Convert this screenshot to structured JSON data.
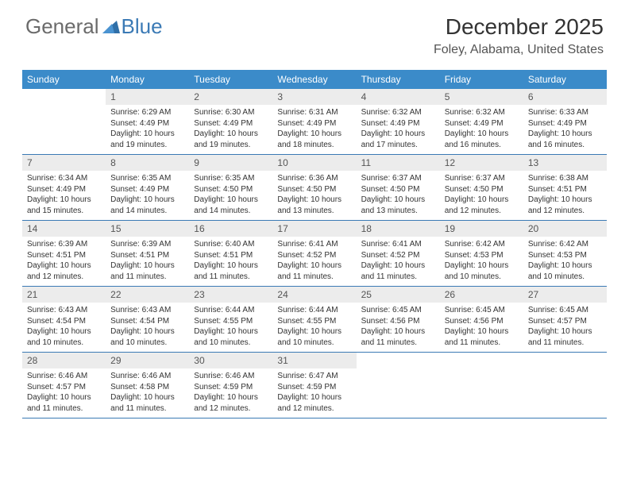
{
  "logo": {
    "text1": "General",
    "text2": "Blue"
  },
  "title": "December 2025",
  "location": "Foley, Alabama, United States",
  "colors": {
    "header_bg": "#3b8bc9",
    "accent": "#3b7ab5",
    "daynum_bg": "#ececec",
    "text": "#333333",
    "logo_gray": "#6b6b6b"
  },
  "day_names": [
    "Sunday",
    "Monday",
    "Tuesday",
    "Wednesday",
    "Thursday",
    "Friday",
    "Saturday"
  ],
  "weeks": [
    [
      {
        "n": "",
        "sr": "",
        "ss": "",
        "dl": ""
      },
      {
        "n": "1",
        "sr": "Sunrise: 6:29 AM",
        "ss": "Sunset: 4:49 PM",
        "dl": "Daylight: 10 hours and 19 minutes."
      },
      {
        "n": "2",
        "sr": "Sunrise: 6:30 AM",
        "ss": "Sunset: 4:49 PM",
        "dl": "Daylight: 10 hours and 19 minutes."
      },
      {
        "n": "3",
        "sr": "Sunrise: 6:31 AM",
        "ss": "Sunset: 4:49 PM",
        "dl": "Daylight: 10 hours and 18 minutes."
      },
      {
        "n": "4",
        "sr": "Sunrise: 6:32 AM",
        "ss": "Sunset: 4:49 PM",
        "dl": "Daylight: 10 hours and 17 minutes."
      },
      {
        "n": "5",
        "sr": "Sunrise: 6:32 AM",
        "ss": "Sunset: 4:49 PM",
        "dl": "Daylight: 10 hours and 16 minutes."
      },
      {
        "n": "6",
        "sr": "Sunrise: 6:33 AM",
        "ss": "Sunset: 4:49 PM",
        "dl": "Daylight: 10 hours and 16 minutes."
      }
    ],
    [
      {
        "n": "7",
        "sr": "Sunrise: 6:34 AM",
        "ss": "Sunset: 4:49 PM",
        "dl": "Daylight: 10 hours and 15 minutes."
      },
      {
        "n": "8",
        "sr": "Sunrise: 6:35 AM",
        "ss": "Sunset: 4:49 PM",
        "dl": "Daylight: 10 hours and 14 minutes."
      },
      {
        "n": "9",
        "sr": "Sunrise: 6:35 AM",
        "ss": "Sunset: 4:50 PM",
        "dl": "Daylight: 10 hours and 14 minutes."
      },
      {
        "n": "10",
        "sr": "Sunrise: 6:36 AM",
        "ss": "Sunset: 4:50 PM",
        "dl": "Daylight: 10 hours and 13 minutes."
      },
      {
        "n": "11",
        "sr": "Sunrise: 6:37 AM",
        "ss": "Sunset: 4:50 PM",
        "dl": "Daylight: 10 hours and 13 minutes."
      },
      {
        "n": "12",
        "sr": "Sunrise: 6:37 AM",
        "ss": "Sunset: 4:50 PM",
        "dl": "Daylight: 10 hours and 12 minutes."
      },
      {
        "n": "13",
        "sr": "Sunrise: 6:38 AM",
        "ss": "Sunset: 4:51 PM",
        "dl": "Daylight: 10 hours and 12 minutes."
      }
    ],
    [
      {
        "n": "14",
        "sr": "Sunrise: 6:39 AM",
        "ss": "Sunset: 4:51 PM",
        "dl": "Daylight: 10 hours and 12 minutes."
      },
      {
        "n": "15",
        "sr": "Sunrise: 6:39 AM",
        "ss": "Sunset: 4:51 PM",
        "dl": "Daylight: 10 hours and 11 minutes."
      },
      {
        "n": "16",
        "sr": "Sunrise: 6:40 AM",
        "ss": "Sunset: 4:51 PM",
        "dl": "Daylight: 10 hours and 11 minutes."
      },
      {
        "n": "17",
        "sr": "Sunrise: 6:41 AM",
        "ss": "Sunset: 4:52 PM",
        "dl": "Daylight: 10 hours and 11 minutes."
      },
      {
        "n": "18",
        "sr": "Sunrise: 6:41 AM",
        "ss": "Sunset: 4:52 PM",
        "dl": "Daylight: 10 hours and 11 minutes."
      },
      {
        "n": "19",
        "sr": "Sunrise: 6:42 AM",
        "ss": "Sunset: 4:53 PM",
        "dl": "Daylight: 10 hours and 10 minutes."
      },
      {
        "n": "20",
        "sr": "Sunrise: 6:42 AM",
        "ss": "Sunset: 4:53 PM",
        "dl": "Daylight: 10 hours and 10 minutes."
      }
    ],
    [
      {
        "n": "21",
        "sr": "Sunrise: 6:43 AM",
        "ss": "Sunset: 4:54 PM",
        "dl": "Daylight: 10 hours and 10 minutes."
      },
      {
        "n": "22",
        "sr": "Sunrise: 6:43 AM",
        "ss": "Sunset: 4:54 PM",
        "dl": "Daylight: 10 hours and 10 minutes."
      },
      {
        "n": "23",
        "sr": "Sunrise: 6:44 AM",
        "ss": "Sunset: 4:55 PM",
        "dl": "Daylight: 10 hours and 10 minutes."
      },
      {
        "n": "24",
        "sr": "Sunrise: 6:44 AM",
        "ss": "Sunset: 4:55 PM",
        "dl": "Daylight: 10 hours and 10 minutes."
      },
      {
        "n": "25",
        "sr": "Sunrise: 6:45 AM",
        "ss": "Sunset: 4:56 PM",
        "dl": "Daylight: 10 hours and 11 minutes."
      },
      {
        "n": "26",
        "sr": "Sunrise: 6:45 AM",
        "ss": "Sunset: 4:56 PM",
        "dl": "Daylight: 10 hours and 11 minutes."
      },
      {
        "n": "27",
        "sr": "Sunrise: 6:45 AM",
        "ss": "Sunset: 4:57 PM",
        "dl": "Daylight: 10 hours and 11 minutes."
      }
    ],
    [
      {
        "n": "28",
        "sr": "Sunrise: 6:46 AM",
        "ss": "Sunset: 4:57 PM",
        "dl": "Daylight: 10 hours and 11 minutes."
      },
      {
        "n": "29",
        "sr": "Sunrise: 6:46 AM",
        "ss": "Sunset: 4:58 PM",
        "dl": "Daylight: 10 hours and 11 minutes."
      },
      {
        "n": "30",
        "sr": "Sunrise: 6:46 AM",
        "ss": "Sunset: 4:59 PM",
        "dl": "Daylight: 10 hours and 12 minutes."
      },
      {
        "n": "31",
        "sr": "Sunrise: 6:47 AM",
        "ss": "Sunset: 4:59 PM",
        "dl": "Daylight: 10 hours and 12 minutes."
      },
      {
        "n": "",
        "sr": "",
        "ss": "",
        "dl": ""
      },
      {
        "n": "",
        "sr": "",
        "ss": "",
        "dl": ""
      },
      {
        "n": "",
        "sr": "",
        "ss": "",
        "dl": ""
      }
    ]
  ]
}
